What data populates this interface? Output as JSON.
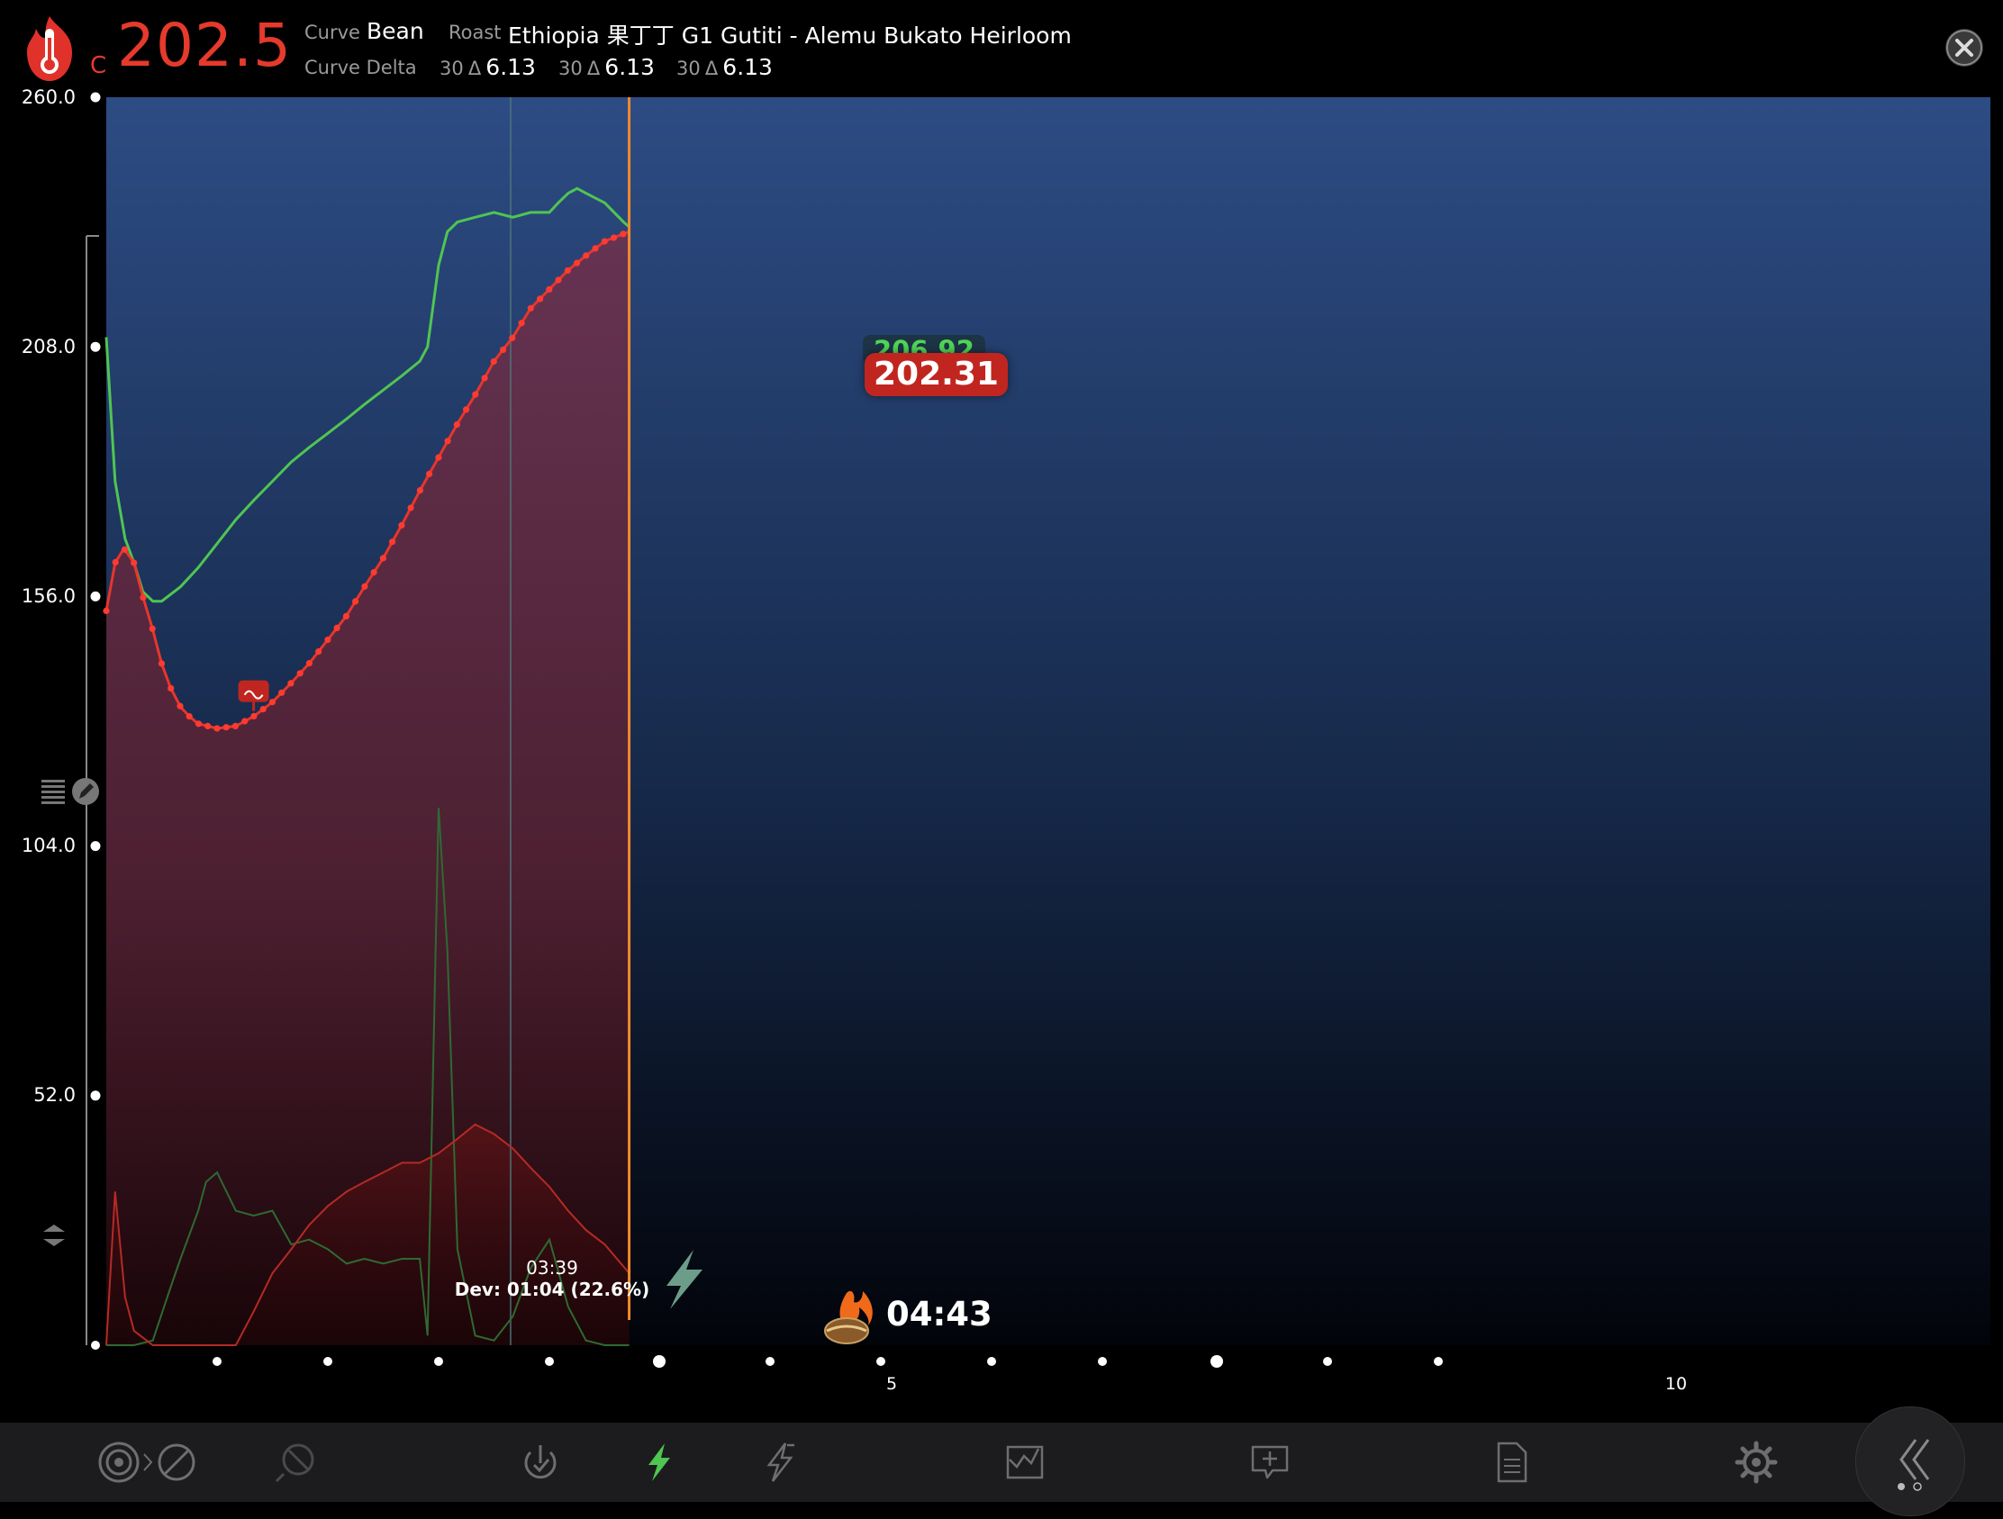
{
  "header": {
    "unit": "C",
    "current_temp": "202.5",
    "curve_label": "Curve",
    "curve_value": "Bean",
    "roast_label": "Roast",
    "roast_value": "Ethiopia 果丁丁 G1 Gutiti - Alemu Bukato Heirloom",
    "curve_delta_label": "Curve Delta",
    "deltas": [
      {
        "window": "30",
        "symbol": "Δ",
        "value": "6.13"
      },
      {
        "window": "30",
        "symbol": "Δ",
        "value": "6.13"
      },
      {
        "window": "30",
        "symbol": "Δ",
        "value": "6.13"
      }
    ]
  },
  "chart_data": {
    "type": "line",
    "y_axis_ticks": [
      "260.0",
      "208.0",
      "156.0",
      "104.0",
      "52.0"
    ],
    "ylim": [
      0,
      260
    ],
    "x_axis_tick_labels": [
      {
        "minute": 5,
        "label": "5"
      },
      {
        "minute": 10,
        "label": "10"
      }
    ],
    "xlim_minutes": [
      0,
      12
    ],
    "series": [
      {
        "role": "bean temperature",
        "color": "#e8352b",
        "points": [
          [
            0.0,
            153
          ],
          [
            0.08,
            163
          ],
          [
            0.16,
            166
          ],
          [
            0.25,
            163
          ],
          [
            0.33,
            156
          ],
          [
            0.42,
            149
          ],
          [
            0.5,
            142
          ],
          [
            0.58,
            137
          ],
          [
            0.67,
            133
          ],
          [
            0.75,
            131
          ],
          [
            0.83,
            129.5
          ],
          [
            1.0,
            128.5
          ],
          [
            1.17,
            129
          ],
          [
            1.33,
            131
          ],
          [
            1.5,
            134
          ],
          [
            1.67,
            138
          ],
          [
            1.83,
            142
          ],
          [
            2.0,
            147
          ],
          [
            2.17,
            152
          ],
          [
            2.33,
            158
          ],
          [
            2.5,
            164
          ],
          [
            2.67,
            171
          ],
          [
            2.83,
            178
          ],
          [
            3.0,
            185
          ],
          [
            3.17,
            192
          ],
          [
            3.33,
            198
          ],
          [
            3.5,
            205
          ],
          [
            3.67,
            210
          ],
          [
            3.83,
            216
          ],
          [
            4.0,
            220
          ],
          [
            4.17,
            224
          ],
          [
            4.33,
            227
          ],
          [
            4.5,
            230
          ],
          [
            4.72,
            232
          ]
        ]
      },
      {
        "role": "environment temperature",
        "color": "#4fc552",
        "points": [
          [
            0.0,
            210
          ],
          [
            0.08,
            180
          ],
          [
            0.17,
            168
          ],
          [
            0.25,
            163
          ],
          [
            0.33,
            157
          ],
          [
            0.42,
            155
          ],
          [
            0.5,
            155
          ],
          [
            0.67,
            158
          ],
          [
            0.83,
            162
          ],
          [
            1.0,
            167
          ],
          [
            1.17,
            172
          ],
          [
            1.33,
            176
          ],
          [
            1.5,
            180
          ],
          [
            1.67,
            184
          ],
          [
            1.83,
            187
          ],
          [
            2.0,
            190
          ],
          [
            2.17,
            193
          ],
          [
            2.33,
            196
          ],
          [
            2.5,
            199
          ],
          [
            2.67,
            202
          ],
          [
            2.83,
            205
          ],
          [
            2.9,
            208
          ],
          [
            3.0,
            225
          ],
          [
            3.08,
            232
          ],
          [
            3.17,
            234
          ],
          [
            3.33,
            235
          ],
          [
            3.5,
            236
          ],
          [
            3.67,
            235
          ],
          [
            3.83,
            236
          ],
          [
            4.0,
            236
          ],
          [
            4.08,
            238
          ],
          [
            4.17,
            240
          ],
          [
            4.25,
            241
          ],
          [
            4.33,
            240
          ],
          [
            4.5,
            238
          ],
          [
            4.67,
            234
          ],
          [
            4.72,
            233
          ]
        ]
      },
      {
        "role": "bean rate of rise",
        "color": "#b52a25",
        "points": [
          [
            0.0,
            0
          ],
          [
            0.08,
            32
          ],
          [
            0.17,
            10
          ],
          [
            0.25,
            3
          ],
          [
            0.42,
            0
          ],
          [
            1.0,
            0
          ],
          [
            1.17,
            0
          ],
          [
            1.33,
            7
          ],
          [
            1.5,
            15
          ],
          [
            1.67,
            20
          ],
          [
            1.83,
            25
          ],
          [
            2.0,
            29
          ],
          [
            2.17,
            32
          ],
          [
            2.33,
            34
          ],
          [
            2.5,
            36
          ],
          [
            2.67,
            38
          ],
          [
            2.83,
            38
          ],
          [
            3.0,
            40
          ],
          [
            3.17,
            43
          ],
          [
            3.33,
            46
          ],
          [
            3.5,
            44
          ],
          [
            3.67,
            41
          ],
          [
            3.83,
            37
          ],
          [
            4.0,
            33
          ],
          [
            4.17,
            28
          ],
          [
            4.33,
            24
          ],
          [
            4.5,
            21
          ],
          [
            4.72,
            15
          ]
        ]
      },
      {
        "role": "environment rate of rise",
        "color": "#2e6a32",
        "points": [
          [
            0.0,
            0
          ],
          [
            0.25,
            0
          ],
          [
            0.42,
            1
          ],
          [
            0.58,
            12
          ],
          [
            0.67,
            18
          ],
          [
            0.83,
            28
          ],
          [
            0.9,
            34
          ],
          [
            1.0,
            36
          ],
          [
            1.17,
            28
          ],
          [
            1.33,
            27
          ],
          [
            1.5,
            28
          ],
          [
            1.67,
            21
          ],
          [
            1.83,
            22
          ],
          [
            2.0,
            20
          ],
          [
            2.17,
            17
          ],
          [
            2.33,
            18
          ],
          [
            2.5,
            17
          ],
          [
            2.67,
            18
          ],
          [
            2.83,
            18
          ],
          [
            2.9,
            2
          ],
          [
            3.0,
            112
          ],
          [
            3.08,
            82
          ],
          [
            3.17,
            20
          ],
          [
            3.33,
            2
          ],
          [
            3.5,
            1
          ],
          [
            3.67,
            6
          ],
          [
            3.83,
            16
          ],
          [
            4.0,
            22
          ],
          [
            4.17,
            8
          ],
          [
            4.33,
            1
          ],
          [
            4.5,
            0
          ],
          [
            4.72,
            0
          ]
        ]
      }
    ],
    "readouts": {
      "environment": "206.92",
      "bean": "202.31"
    },
    "event_marker": {
      "time": "03:39",
      "dev": "Dev: 01:04 (22.6%)"
    },
    "elapsed": "04:43",
    "grid": false
  },
  "toolbar": {
    "icons": [
      "target-icon",
      "chevron-right-icon",
      "no-sign-icon",
      "probe-icon",
      "power-check-icon",
      "bolt-icon",
      "bolt-alt-icon",
      "profile-graph-icon",
      "add-comment-icon",
      "document-icon",
      "gear-icon",
      "double-chevron-left-icon"
    ],
    "active_color": "#4fc552",
    "inactive_color": "#6e6e70"
  }
}
